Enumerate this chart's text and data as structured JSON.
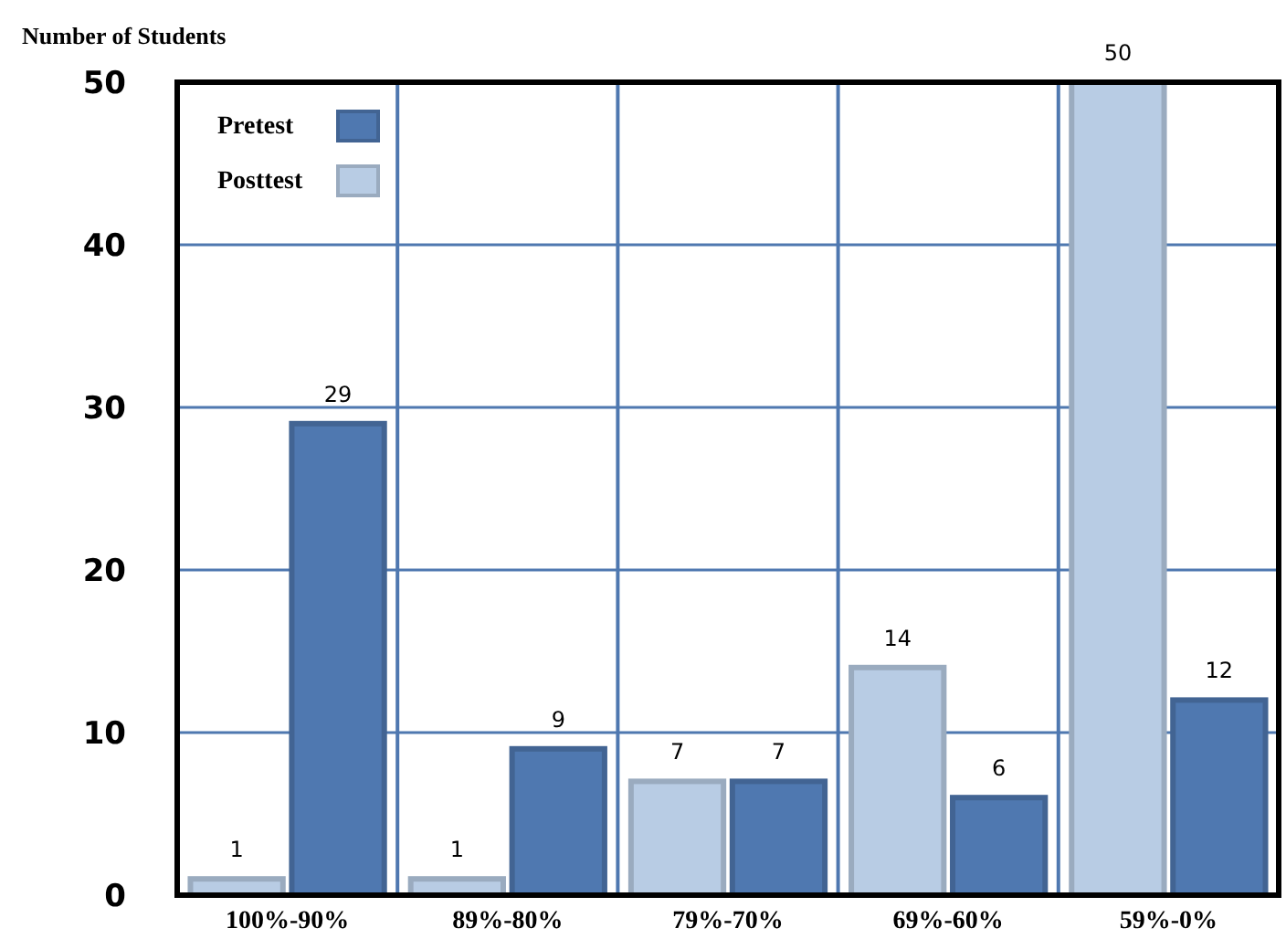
{
  "chart_data": {
    "type": "bar",
    "ylabel": "Number of Students",
    "categories": [
      "100%-90%",
      "89%-80%",
      "79%-70%",
      "69%-60%",
      "59%-0%"
    ],
    "series": [
      {
        "name": "Posttest",
        "color": "#b8cce4",
        "values": [
          1,
          1,
          7,
          14,
          50
        ]
      },
      {
        "name": "Pretest",
        "color": "#4f78b0",
        "values": [
          29,
          9,
          7,
          6,
          12
        ]
      }
    ],
    "ylim": [
      0,
      50
    ],
    "yticks": [
      0,
      10,
      20,
      30,
      40,
      50
    ],
    "grid": true,
    "legend": "top left",
    "data_labels": true
  }
}
